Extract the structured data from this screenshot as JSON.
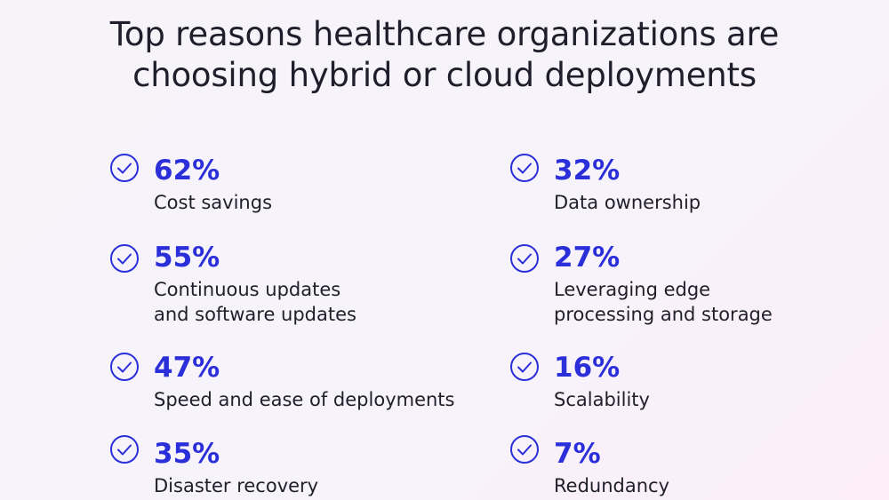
{
  "title": {
    "line1": "Top reasons healthcare organizations are",
    "line2": "choosing hybrid or cloud deployments"
  },
  "icon": "check-circle-icon",
  "accent_color": "#2b2fd9",
  "text_color": "#1f1f2b",
  "left_column": [
    {
      "percent": "62%",
      "label": "Cost savings"
    },
    {
      "percent": "55%",
      "label": "Continuous updates\nand software updates"
    },
    {
      "percent": "47%",
      "label": "Speed and ease of deployments"
    },
    {
      "percent": "35%",
      "label": "Disaster recovery"
    }
  ],
  "right_column": [
    {
      "percent": "32%",
      "label": "Data ownership"
    },
    {
      "percent": "27%",
      "label": "Leveraging edge\nprocessing and storage"
    },
    {
      "percent": "16%",
      "label": "Scalability"
    },
    {
      "percent": "7%",
      "label": "Redundancy"
    }
  ]
}
